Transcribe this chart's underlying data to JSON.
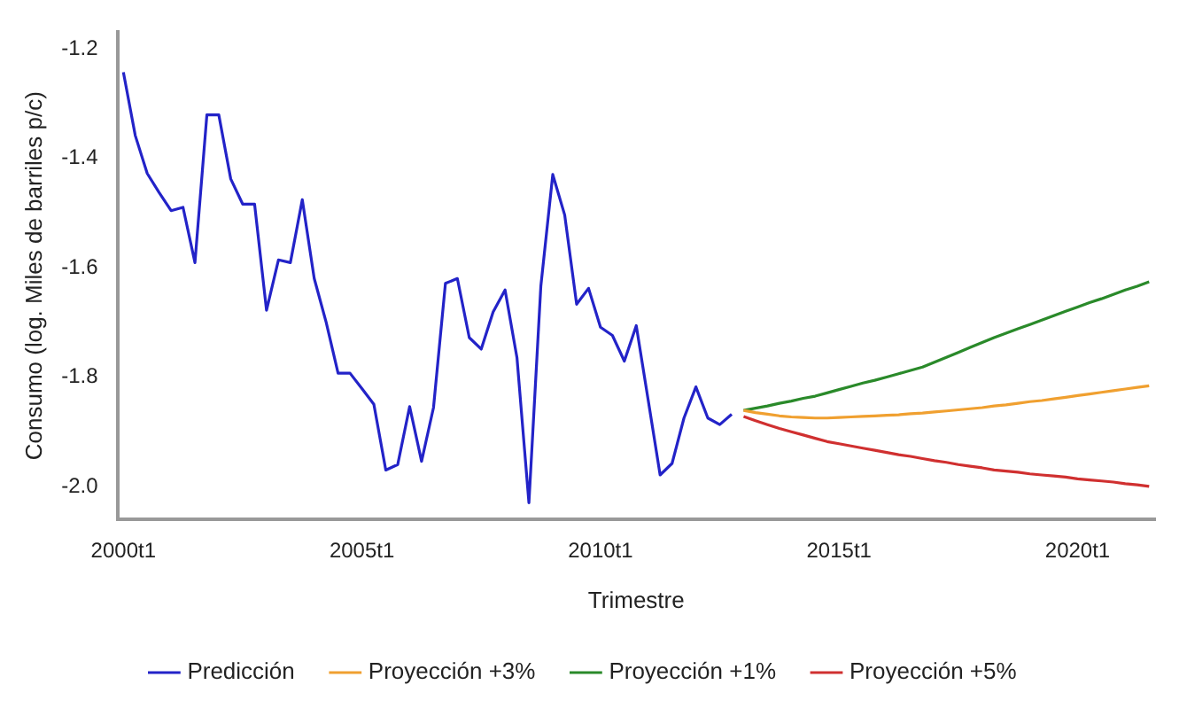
{
  "chart_data": {
    "type": "line",
    "xlabel": "Trimestre",
    "ylabel": "Consumo (log. Miles de barriles p/c)",
    "categories": [
      "2000t1",
      null,
      null,
      null,
      null,
      null,
      null,
      null,
      null,
      null,
      null,
      null,
      null,
      null,
      null,
      null,
      null,
      null,
      null,
      null,
      "2005t1",
      null,
      null,
      null,
      null,
      null,
      null,
      null,
      null,
      null,
      null,
      null,
      null,
      null,
      null,
      null,
      null,
      null,
      null,
      null,
      "2010t1",
      null,
      null,
      null,
      null,
      null,
      null,
      null,
      null,
      null,
      null,
      null,
      null,
      null,
      null,
      null,
      null,
      null,
      null,
      null,
      "2015t1",
      null,
      null,
      null,
      null,
      null,
      null,
      null,
      null,
      null,
      null,
      null,
      null,
      null,
      null,
      null,
      null,
      null,
      null,
      null,
      "2020t1",
      null,
      null,
      null,
      null,
      null,
      null
    ],
    "ylim": [
      -2.06,
      -1.17
    ],
    "yticks": [
      {
        "value": -2.0,
        "label": "-2.0"
      },
      {
        "value": -1.8,
        "label": "-1.8"
      },
      {
        "value": -1.6,
        "label": "-1.6"
      },
      {
        "value": -1.4,
        "label": "-1.4"
      },
      {
        "value": -1.2,
        "label": "-1.2"
      }
    ],
    "grid": false,
    "legend": "bottom",
    "marker": "none",
    "line_style": "solid",
    "series": [
      {
        "name": "Predicción",
        "color": "#2323c8",
        "values": [
          -1.243,
          -1.359,
          -1.428,
          -1.463,
          -1.496,
          -1.49,
          -1.591,
          -1.321,
          -1.321,
          -1.438,
          -1.484,
          -1.484,
          -1.678,
          -1.586,
          -1.591,
          -1.476,
          -1.62,
          -1.7,
          -1.793,
          -1.793,
          -1.821,
          -1.85,
          -1.97,
          -1.96,
          -1.854,
          -1.954,
          -1.856,
          -1.629,
          -1.62,
          -1.728,
          -1.749,
          -1.681,
          -1.641,
          -1.765,
          -2.03,
          -1.634,
          -1.43,
          -1.504,
          -1.667,
          -1.638,
          -1.709,
          -1.724,
          -1.771,
          -1.706,
          -1.842,
          -1.979,
          -1.958,
          -1.875,
          -1.818,
          -1.875,
          -1.887,
          -1.868,
          null,
          null,
          null,
          null,
          null,
          null,
          null,
          null,
          null,
          null,
          null,
          null,
          null,
          null,
          null,
          null,
          null,
          null,
          null,
          null,
          null,
          null,
          null,
          null,
          null,
          null,
          null,
          null,
          null,
          null,
          null,
          null,
          null,
          null,
          null
        ]
      },
      {
        "name": "Proyección +3%",
        "color": "#f0a030",
        "values": [
          null,
          null,
          null,
          null,
          null,
          null,
          null,
          null,
          null,
          null,
          null,
          null,
          null,
          null,
          null,
          null,
          null,
          null,
          null,
          null,
          null,
          null,
          null,
          null,
          null,
          null,
          null,
          null,
          null,
          null,
          null,
          null,
          null,
          null,
          null,
          null,
          null,
          null,
          null,
          null,
          null,
          null,
          null,
          null,
          null,
          null,
          null,
          null,
          null,
          null,
          null,
          null,
          -1.861,
          -1.865,
          -1.868,
          -1.871,
          -1.873,
          -1.874,
          -1.875,
          -1.875,
          -1.874,
          -1.873,
          -1.872,
          -1.871,
          -1.87,
          -1.869,
          -1.867,
          -1.866,
          -1.864,
          -1.862,
          -1.86,
          -1.858,
          -1.856,
          -1.853,
          -1.851,
          -1.848,
          -1.845,
          -1.843,
          -1.84,
          -1.837,
          -1.834,
          -1.831,
          -1.828,
          -1.825,
          -1.822,
          -1.819,
          -1.816
        ]
      },
      {
        "name": "Proyección +1%",
        "color": "#2a8a2a",
        "values": [
          null,
          null,
          null,
          null,
          null,
          null,
          null,
          null,
          null,
          null,
          null,
          null,
          null,
          null,
          null,
          null,
          null,
          null,
          null,
          null,
          null,
          null,
          null,
          null,
          null,
          null,
          null,
          null,
          null,
          null,
          null,
          null,
          null,
          null,
          null,
          null,
          null,
          null,
          null,
          null,
          null,
          null,
          null,
          null,
          null,
          null,
          null,
          null,
          null,
          null,
          null,
          null,
          -1.861,
          -1.857,
          -1.853,
          -1.848,
          -1.844,
          -1.839,
          -1.835,
          -1.829,
          -1.823,
          -1.817,
          -1.811,
          -1.806,
          -1.8,
          -1.794,
          -1.788,
          -1.782,
          -1.773,
          -1.764,
          -1.755,
          -1.746,
          -1.737,
          -1.728,
          -1.72,
          -1.712,
          -1.704,
          -1.696,
          -1.688,
          -1.68,
          -1.672,
          -1.664,
          -1.657,
          -1.649,
          -1.641,
          -1.634,
          -1.626
        ]
      },
      {
        "name": "Proyección +5%",
        "color": "#d03030",
        "values": [
          null,
          null,
          null,
          null,
          null,
          null,
          null,
          null,
          null,
          null,
          null,
          null,
          null,
          null,
          null,
          null,
          null,
          null,
          null,
          null,
          null,
          null,
          null,
          null,
          null,
          null,
          null,
          null,
          null,
          null,
          null,
          null,
          null,
          null,
          null,
          null,
          null,
          null,
          null,
          null,
          null,
          null,
          null,
          null,
          null,
          null,
          null,
          null,
          null,
          null,
          null,
          null,
          -1.872,
          -1.88,
          -1.887,
          -1.894,
          -1.9,
          -1.906,
          -1.912,
          -1.918,
          -1.922,
          -1.926,
          -1.93,
          -1.934,
          -1.938,
          -1.942,
          -1.945,
          -1.949,
          -1.953,
          -1.956,
          -1.96,
          -1.963,
          -1.966,
          -1.97,
          -1.972,
          -1.974,
          -1.977,
          -1.979,
          -1.981,
          -1.983,
          -1.986,
          -1.988,
          -1.99,
          -1.992,
          -1.995,
          -1.997,
          -2.0
        ]
      }
    ]
  }
}
